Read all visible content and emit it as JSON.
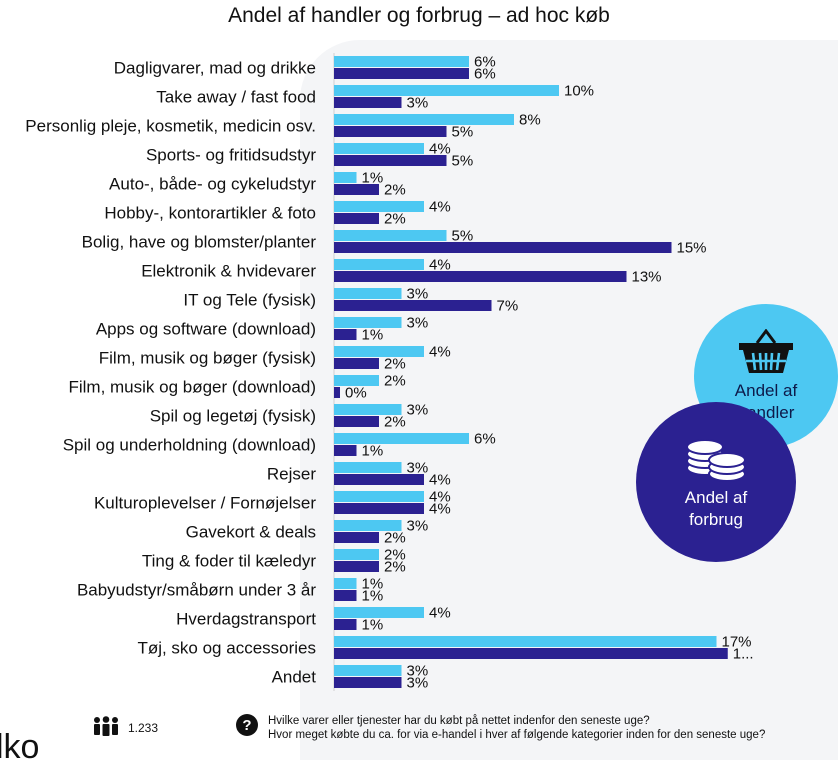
{
  "title": "Andel af handler og forbrug – ad hoc køb",
  "chart_data": {
    "type": "bar",
    "orientation": "horizontal",
    "title": "Andel af handler og forbrug – ad hoc køb",
    "categories": [
      "Dagligvarer, mad og drikke",
      "Take away / fast food",
      "Personlig pleje, kosmetik, medicin osv.",
      "Sports- og fritidsudstyr",
      "Auto-, både- og cykeludstyr",
      "Hobby-, kontorartikler & foto",
      "Bolig, have og blomster/planter",
      "Elektronik & hvidevarer",
      "IT og Tele (fysisk)",
      "Apps og software (download)",
      "Film, musik og bøger (fysisk)",
      "Film, musik og bøger (download)",
      "Spil og legetøj (fysisk)",
      "Spil og underholdning (download)",
      "Rejser",
      "Kulturoplevelser / Fornøjelser",
      "Gavekort & deals",
      "Ting & foder til kæledyr",
      "Babyudstyr/småbørn under 3 år",
      "Hverdagstransport",
      "Tøj, sko og accessories",
      "Andet"
    ],
    "series": [
      {
        "name": "Andel af handler",
        "color": "#4DC8F2",
        "values": [
          6,
          10,
          8,
          4,
          1,
          4,
          5,
          4,
          3,
          3,
          4,
          2,
          3,
          6,
          3,
          4,
          3,
          2,
          1,
          4,
          17,
          3
        ],
        "labels": [
          "6%",
          "10%",
          "8%",
          "4%",
          "1%",
          "4%",
          "5%",
          "4%",
          "3%",
          "3%",
          "4%",
          "2%",
          "3%",
          "6%",
          "3%",
          "4%",
          "3%",
          "2%",
          "1%",
          "4%",
          "17%",
          "3%"
        ]
      },
      {
        "name": "Andel af forbrug",
        "color": "#2B2191",
        "values": [
          6,
          3,
          5,
          5,
          2,
          2,
          15,
          13,
          7,
          1,
          2,
          0,
          2,
          1,
          4,
          4,
          2,
          2,
          1,
          1,
          17.5,
          3
        ],
        "labels": [
          "6%",
          "3%",
          "5%",
          "5%",
          "2%",
          "2%",
          "15%",
          "13%",
          "7%",
          "1%",
          "2%",
          "0%",
          "2%",
          "1%",
          "4%",
          "4%",
          "2%",
          "2%",
          "1%",
          "1%",
          "1...",
          "3%"
        ]
      }
    ],
    "grid": false,
    "legend": "right"
  },
  "legend": {
    "handler_label": "Andel af handler",
    "forbrug_label": "Andel af forbrug",
    "handler_icon": "basket-icon",
    "forbrug_icon": "coins-icon"
  },
  "footer": {
    "respondents": "1.233",
    "respondents_icon": "people-icon",
    "question_icon": "question-icon",
    "question_line1": "Hvilke varer eller tjenester har du købt på nettet indenfor den seneste uge?",
    "question_line2": "Hvor meget købte du ca. for via e-handel i hver af følgende kategorier inden for den seneste uge?"
  },
  "logo_text": "lko"
}
